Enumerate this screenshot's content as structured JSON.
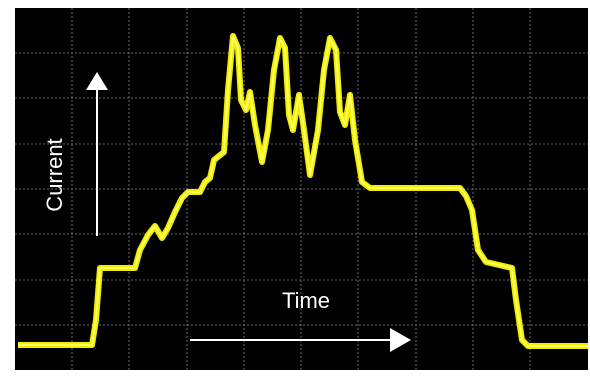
{
  "labels": {
    "y": "Current",
    "x": "Time"
  }
}
